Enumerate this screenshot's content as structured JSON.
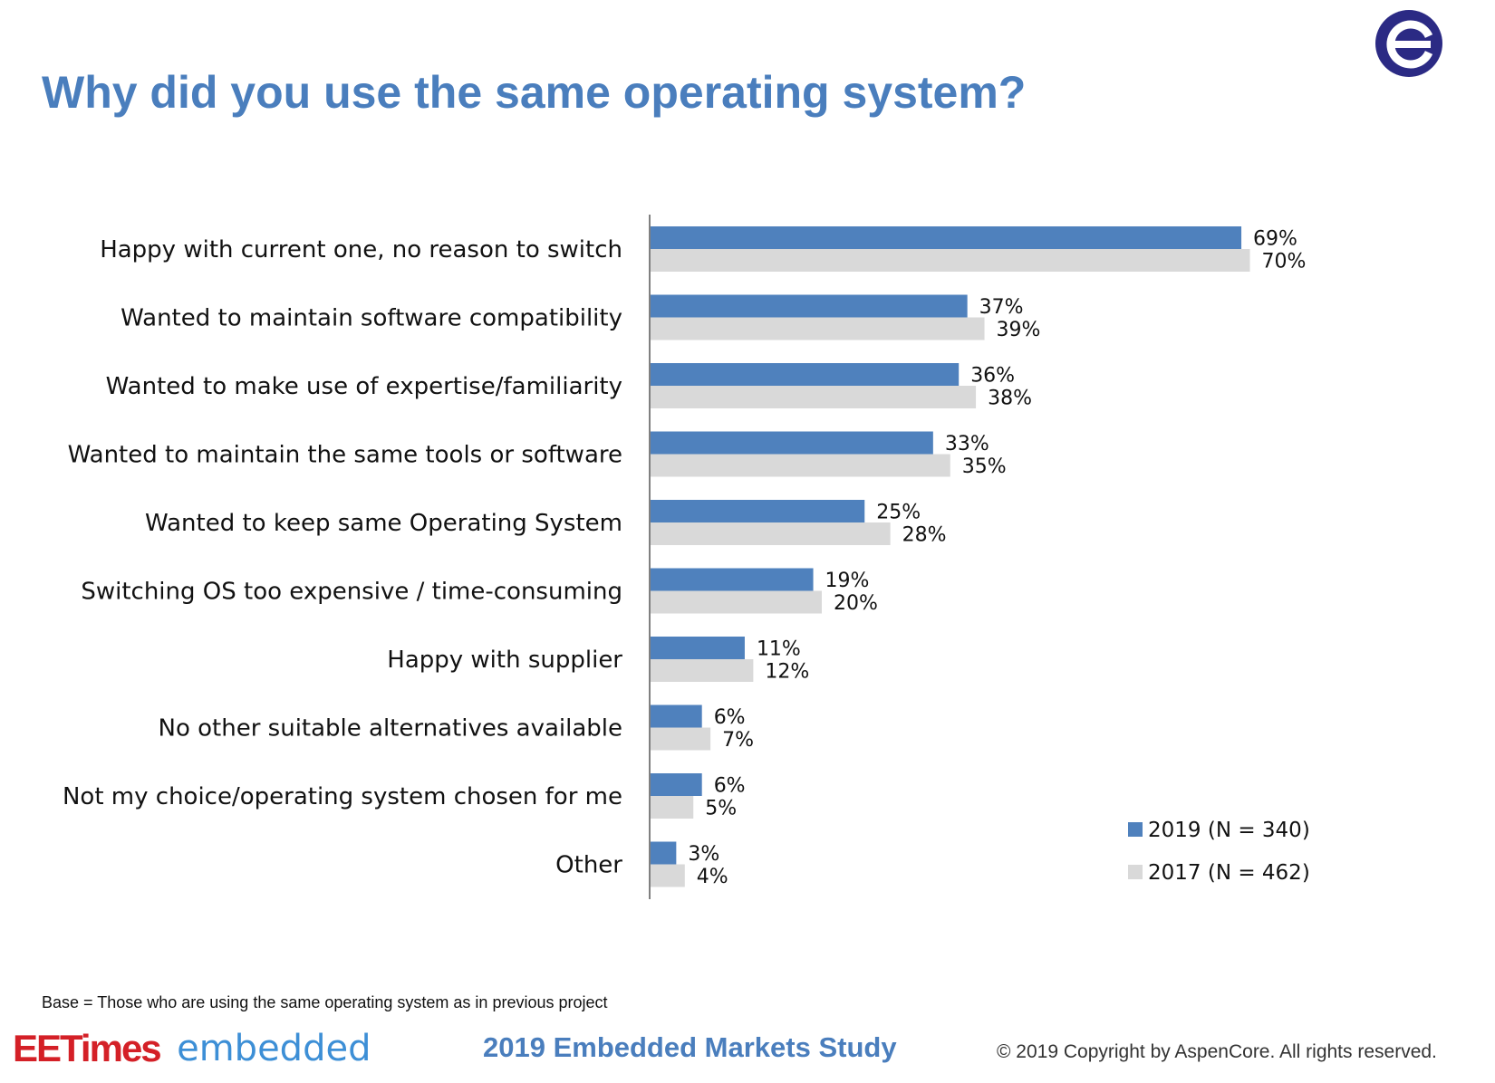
{
  "title": "Why did you use the same operating system?",
  "logo": {
    "icon": "aspencore-a-logo-icon",
    "color": "#2b2a84"
  },
  "chart_data": {
    "type": "bar",
    "orientation": "horizontal",
    "categories": [
      "Happy with current one, no reason to switch",
      "Wanted to maintain software compatibility",
      "Wanted to make use of expertise/familiarity",
      "Wanted to maintain the same tools or software",
      "Wanted to keep same Operating System",
      "Switching OS too expensive / time-consuming",
      "Happy with supplier",
      "No other suitable alternatives available",
      "Not my choice/operating system chosen for me",
      "Other"
    ],
    "series": [
      {
        "name": "2019 (N = 340)",
        "color": "#4f81bd",
        "values": [
          69,
          37,
          36,
          33,
          25,
          19,
          11,
          6,
          6,
          3
        ]
      },
      {
        "name": "2017 (N = 462)",
        "color": "#d9d9d9",
        "values": [
          70,
          39,
          38,
          35,
          28,
          20,
          12,
          7,
          5,
          4
        ]
      }
    ],
    "value_suffix": "%",
    "xlim": [
      0,
      100
    ],
    "grid": false,
    "legend_position": "bottom-right"
  },
  "footer": {
    "base_note": "Base = Those who are using the same operating system as in previous project",
    "brand_ee": "EETimes",
    "brand_embedded": "embedded",
    "study": "2019 Embedded Markets Study",
    "copyright": "© 2019 Copyright by AspenCore. All rights reserved."
  }
}
